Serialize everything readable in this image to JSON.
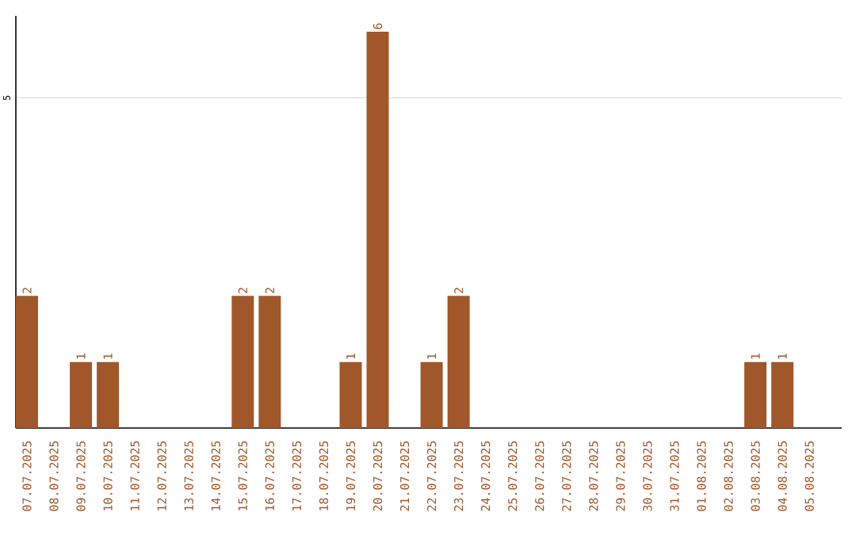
{
  "chart_data": {
    "type": "bar",
    "categories": [
      "07.07.2025",
      "08.07.2025",
      "09.07.2025",
      "10.07.2025",
      "11.07.2025",
      "12.07.2025",
      "13.07.2025",
      "14.07.2025",
      "15.07.2025",
      "16.07.2025",
      "17.07.2025",
      "18.07.2025",
      "19.07.2025",
      "20.07.2025",
      "21.07.2025",
      "22.07.2025",
      "23.07.2025",
      "24.07.2025",
      "25.07.2025",
      "26.07.2025",
      "27.07.2025",
      "28.07.2025",
      "29.07.2025",
      "30.07.2025",
      "31.07.2025",
      "01.08.2025",
      "02.08.2025",
      "03.08.2025",
      "04.08.2025",
      "05.08.2025"
    ],
    "values": [
      2,
      0,
      1,
      1,
      0,
      0,
      0,
      0,
      2,
      2,
      0,
      0,
      1,
      6,
      0,
      1,
      2,
      0,
      0,
      0,
      0,
      0,
      0,
      0,
      0,
      0,
      0,
      1,
      1,
      0
    ],
    "value_labels": [
      "2",
      null,
      "1",
      "1",
      null,
      null,
      null,
      null,
      "2",
      "2",
      null,
      null,
      "1",
      "6",
      null,
      "1",
      "2",
      null,
      null,
      null,
      null,
      null,
      null,
      null,
      null,
      null,
      null,
      "1",
      "1",
      null
    ],
    "color": "#a0572a",
    "ylim": [
      0,
      6.24
    ],
    "yticks": [
      5
    ],
    "grid": "y"
  }
}
